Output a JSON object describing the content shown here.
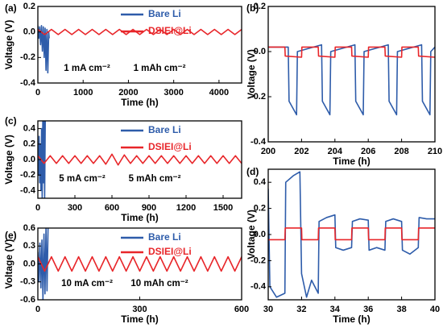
{
  "chart_data": [
    {
      "type": "line",
      "label": "(a)",
      "xlabel": "Time (h)",
      "ylabel": "Voltage (V)",
      "xlim": [
        0,
        4500
      ],
      "ylim": [
        -0.4,
        0.2
      ],
      "xticks": [
        0,
        1000,
        2000,
        3000,
        4000
      ],
      "yticks": [
        -0.4,
        -0.2,
        {
          "value": 0,
          "label": "0.0"
        },
        0.2
      ],
      "annotations": [
        "1 mA cm⁻²",
        "1 mAh cm⁻²"
      ],
      "series": [
        {
          "name": "Bare Li",
          "color": "#2e5caa",
          "x": [
            0,
            20,
            40,
            60,
            80,
            100,
            120,
            140,
            160,
            180,
            200,
            220,
            240,
            250
          ],
          "values": [
            0.05,
            -0.05,
            0.04,
            -0.1,
            0.05,
            -0.15,
            0.04,
            -0.2,
            0.03,
            -0.3,
            0.02,
            -0.32,
            0.0,
            -0.05
          ]
        },
        {
          "name": "DSIEI@Li",
          "color": "#e8262a",
          "x": [
            0,
            150,
            300,
            450,
            600,
            750,
            900,
            1050,
            1200,
            1350,
            1500,
            1650,
            1800,
            1950,
            2100,
            2250,
            2400,
            2550,
            2700,
            2850,
            3000,
            3150,
            3300,
            3450,
            3600,
            3750,
            3900,
            4050,
            4200,
            4350,
            4500
          ],
          "values": [
            0.02,
            -0.02,
            0.02,
            -0.02,
            0.02,
            -0.02,
            0.02,
            -0.02,
            0.02,
            -0.02,
            0.02,
            -0.02,
            0.02,
            -0.02,
            0.02,
            -0.02,
            0.02,
            -0.02,
            0.02,
            -0.02,
            0.02,
            -0.02,
            0.02,
            -0.02,
            0.02,
            -0.02,
            0.02,
            -0.02,
            0.02,
            -0.02,
            0.02
          ]
        }
      ]
    },
    {
      "type": "line",
      "label": "(b)",
      "xlabel": "Time (h)",
      "ylabel": "Voltage (V)",
      "xlim": [
        200,
        210
      ],
      "ylim": [
        -0.4,
        0.2
      ],
      "xticks": [
        200,
        202,
        204,
        206,
        208,
        210
      ],
      "yticks": [
        -0.4,
        -0.2,
        {
          "value": 0,
          "label": "0.0"
        },
        0.2
      ],
      "series": [
        {
          "color": "#2e5caa",
          "x": [
            200,
            201.2,
            201.25,
            201.7,
            201.75,
            203.2,
            203.25,
            203.7,
            203.75,
            205.2,
            205.25,
            205.7,
            205.75,
            207.2,
            207.25,
            207.7,
            207.75,
            209.2,
            209.25,
            209.7,
            209.75,
            210
          ],
          "values": [
            0.02,
            0.02,
            -0.22,
            -0.28,
            0.0,
            0.03,
            -0.22,
            -0.28,
            0.0,
            0.03,
            -0.22,
            -0.28,
            0.0,
            0.03,
            -0.22,
            -0.28,
            0.0,
            0.03,
            -0.22,
            -0.28,
            0.0,
            0.02
          ]
        },
        {
          "color": "#e8262a",
          "x": [
            200,
            201,
            201.02,
            202,
            202.02,
            203,
            203.02,
            204,
            204.02,
            205,
            205.02,
            206,
            206.02,
            207,
            207.02,
            208,
            208.02,
            209,
            209.02,
            210
          ],
          "values": [
            0.02,
            0.02,
            -0.02,
            -0.025,
            0.02,
            0.02,
            -0.02,
            -0.025,
            0.02,
            0.02,
            -0.02,
            -0.025,
            0.02,
            0.02,
            -0.02,
            -0.025,
            0.02,
            0.02,
            -0.02,
            -0.025
          ]
        }
      ]
    },
    {
      "type": "line",
      "label": "(c)",
      "xlabel": "Time (h)",
      "ylabel": "Voltage (V)",
      "xlim": [
        0,
        1650
      ],
      "ylim": [
        -0.5,
        0.5
      ],
      "xticks": [
        0,
        300,
        600,
        900,
        1200,
        1500
      ],
      "yticks": [
        -0.4,
        -0.2,
        {
          "value": 0,
          "label": "0.0"
        },
        0.2,
        0.4
      ],
      "annotations": [
        "5 mA cm⁻²",
        "5 mAh cm⁻²"
      ],
      "series": [
        {
          "name": "Bare Li",
          "color": "#2e5caa",
          "x": [
            0,
            5,
            10,
            15,
            20,
            25,
            30,
            35,
            40,
            45,
            50,
            55,
            60
          ],
          "values": [
            0.1,
            -0.2,
            0.3,
            -0.3,
            0.2,
            -0.4,
            0.4,
            -0.5,
            0.5,
            -0.3,
            0.5,
            -0.5,
            0.5
          ]
        },
        {
          "name": "DSIEI@Li",
          "color": "#e8262a",
          "x": [
            0,
            50,
            100,
            150,
            200,
            250,
            300,
            350,
            400,
            450,
            500,
            550,
            600,
            650,
            700,
            750,
            800,
            850,
            900,
            950,
            1000,
            1050,
            1100,
            1150,
            1200,
            1250,
            1300,
            1350,
            1400,
            1450,
            1500,
            1550,
            1600,
            1650
          ],
          "values": [
            0.05,
            -0.05,
            0.05,
            -0.05,
            0.05,
            -0.05,
            0.05,
            -0.05,
            0.05,
            -0.05,
            0.05,
            -0.06,
            0.07,
            -0.07,
            0.06,
            -0.05,
            0.05,
            -0.05,
            0.05,
            -0.05,
            0.05,
            -0.05,
            0.05,
            -0.05,
            0.05,
            -0.05,
            0.05,
            -0.05,
            0.05,
            -0.05,
            0.05,
            -0.05,
            0.05,
            -0.05
          ]
        }
      ]
    },
    {
      "type": "line",
      "label": "(d)",
      "xlabel": "Time (h)",
      "ylabel": "Voltage (V)",
      "xlim": [
        30,
        40
      ],
      "ylim": [
        -0.5,
        0.5
      ],
      "xticks": [
        30,
        32,
        34,
        36,
        38,
        40
      ],
      "yticks": [
        -0.4,
        -0.2,
        {
          "value": 0,
          "label": "0.0"
        },
        0.2,
        0.4
      ],
      "series": [
        {
          "color": "#2e5caa",
          "x": [
            30,
            30.1,
            30.5,
            31,
            31.05,
            31.5,
            31.9,
            32,
            32.3,
            32.6,
            33,
            33.05,
            33.5,
            34,
            34.05,
            34.5,
            35,
            35.05,
            35.5,
            36,
            36.05,
            36.5,
            37,
            37.05,
            37.5,
            38,
            38.05,
            38.5,
            39,
            39.05,
            39.5,
            40
          ],
          "values": [
            0.35,
            -0.4,
            -0.48,
            -0.45,
            0.4,
            0.45,
            0.48,
            -0.3,
            -0.48,
            -0.35,
            -0.45,
            0.1,
            0.13,
            0.15,
            -0.1,
            -0.12,
            -0.1,
            0.1,
            0.12,
            0.11,
            -0.12,
            -0.1,
            -0.12,
            0.1,
            0.12,
            0.1,
            -0.12,
            -0.15,
            -0.1,
            0.13,
            0.12,
            0.12
          ]
        },
        {
          "color": "#e8262a",
          "x": [
            30,
            31,
            31.02,
            32,
            32.02,
            33,
            33.02,
            34,
            34.02,
            35,
            35.02,
            36,
            36.02,
            37,
            37.02,
            38,
            38.02,
            39,
            39.02,
            40
          ],
          "values": [
            -0.04,
            -0.04,
            0.05,
            0.05,
            -0.04,
            -0.04,
            0.05,
            0.05,
            -0.04,
            -0.04,
            0.05,
            0.05,
            -0.04,
            -0.04,
            0.05,
            0.05,
            -0.04,
            -0.04,
            0.05,
            0.05
          ]
        }
      ]
    },
    {
      "type": "line",
      "label": "(e)",
      "xlabel": "Time (h)",
      "ylabel": "Voltage (V)",
      "xlim": [
        0,
        600
      ],
      "ylim": [
        -0.6,
        0.6
      ],
      "xticks": [
        0,
        300,
        600
      ],
      "yticks": [
        -0.6,
        -0.3,
        {
          "value": 0,
          "label": "0.0"
        },
        0.3,
        0.6
      ],
      "annotations": [
        "10 mA cm⁻²",
        "10 mAh cm⁻²"
      ],
      "series": [
        {
          "name": "Bare Li",
          "color": "#2e5caa",
          "x": [
            0,
            3,
            6,
            9,
            12,
            15,
            18,
            21,
            24,
            27,
            30
          ],
          "values": [
            0.2,
            -0.3,
            0.35,
            -0.4,
            0.4,
            -0.6,
            0.5,
            -0.5,
            0.6,
            -0.45,
            0.6
          ]
        },
        {
          "name": "DSIEI@Li",
          "color": "#e8262a",
          "x": [
            0,
            20,
            40,
            60,
            80,
            100,
            120,
            140,
            160,
            180,
            200,
            220,
            240,
            260,
            280,
            300,
            320,
            340,
            360,
            380,
            400,
            420,
            440,
            460,
            480,
            500,
            520,
            540,
            560,
            580,
            600
          ],
          "values": [
            0.12,
            -0.12,
            0.12,
            -0.12,
            0.12,
            -0.12,
            0.12,
            -0.12,
            0.12,
            -0.12,
            0.12,
            -0.12,
            0.12,
            -0.12,
            0.12,
            -0.12,
            0.12,
            -0.12,
            0.12,
            -0.12,
            0.12,
            -0.12,
            0.12,
            -0.12,
            0.12,
            -0.12,
            0.12,
            -0.12,
            0.12,
            -0.12,
            0.12
          ]
        }
      ]
    }
  ]
}
